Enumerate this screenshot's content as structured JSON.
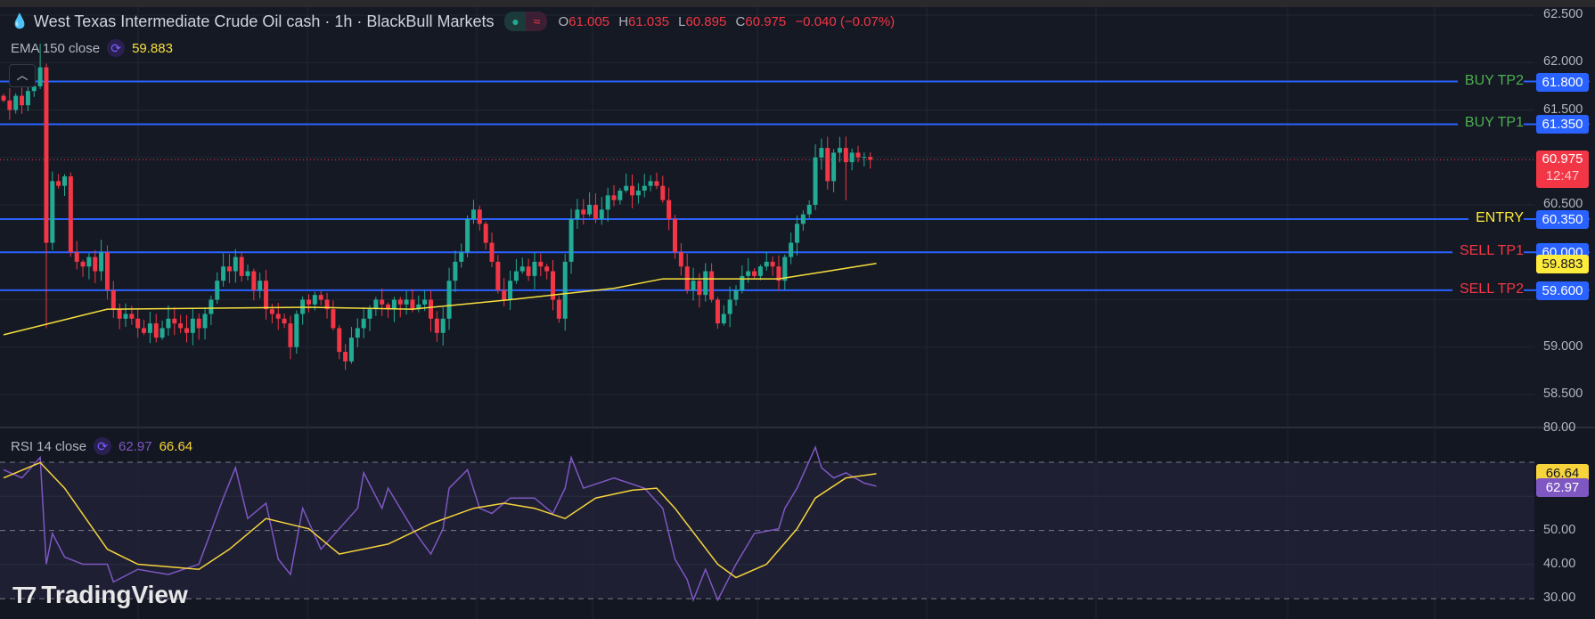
{
  "header": {
    "icon": "droplet-icon",
    "title": "West Texas Intermediate Crude Oil cash · 1h · BlackBull Markets",
    "market_status_icon": "market-open-dot-icon",
    "delay_icon": "approx-icon",
    "ohlc": {
      "o_label": "O",
      "o": "61.005",
      "h_label": "H",
      "h": "61.035",
      "l_label": "L",
      "l": "60.895",
      "c_label": "C",
      "c": "60.975",
      "change": "−0.040 (−0.07%)"
    }
  },
  "ema": {
    "label": "EMA 150 close",
    "value": "59.883",
    "color": "#f7e03c"
  },
  "rsi": {
    "label": "RSI 14 close",
    "value": "62.97",
    "ma_value": "66.64",
    "color": "#7e57c2",
    "ma_color": "#f7d43c"
  },
  "price_axis": {
    "ticks": [
      "62.500",
      "62.000",
      "61.500",
      "60.500",
      "59.000",
      "58.500"
    ],
    "current_price": "60.975",
    "countdown": "12:47",
    "ema_tag": "59.883"
  },
  "rsi_axis": {
    "ticks": [
      "80.00",
      "50.00",
      "40.00",
      "30.00"
    ]
  },
  "levels": [
    {
      "name": "BUY TP2",
      "price": 61.8,
      "tag": "61.800",
      "color": "#4caf50"
    },
    {
      "name": "BUY TP1",
      "price": 61.35,
      "tag": "61.350",
      "color": "#4caf50"
    },
    {
      "name": "ENTRY",
      "price": 60.35,
      "tag": "60.350",
      "color": "#ffeb3b"
    },
    {
      "name": "SELL TP1",
      "price": 60.0,
      "tag": "60.000",
      "color": "#f23645"
    },
    {
      "name": "SELL TP2",
      "price": 59.6,
      "tag": "59.600",
      "color": "#f23645"
    }
  ],
  "colors": {
    "up": "#22ab94",
    "down": "#f23645",
    "level_line": "#2962ff",
    "bg": "#131722"
  },
  "logo": "TradingView",
  "chart_data": {
    "type": "candlestick",
    "ylim": [
      58.3,
      62.6
    ],
    "rsi_ylim": [
      28,
      82
    ],
    "closes": [
      61.6,
      61.5,
      61.65,
      61.55,
      61.7,
      61.75,
      61.95,
      60.1,
      60.75,
      60.7,
      60.8,
      60.0,
      59.9,
      59.85,
      59.95,
      59.8,
      60.0,
      59.6,
      59.4,
      59.3,
      59.35,
      59.3,
      59.2,
      59.15,
      59.25,
      59.1,
      59.2,
      59.3,
      59.25,
      59.2,
      59.15,
      59.3,
      59.2,
      59.35,
      59.5,
      59.7,
      59.85,
      59.8,
      59.95,
      59.75,
      59.8,
      59.6,
      59.7,
      59.4,
      59.35,
      59.3,
      59.25,
      59.0,
      59.35,
      59.5,
      59.45,
      59.55,
      59.5,
      59.4,
      59.2,
      58.95,
      58.85,
      59.1,
      59.2,
      59.3,
      59.4,
      59.5,
      59.45,
      59.4,
      59.5,
      59.45,
      59.5,
      59.4,
      59.45,
      59.5,
      59.3,
      59.15,
      59.3,
      59.7,
      59.9,
      60.0,
      60.35,
      60.45,
      60.3,
      60.1,
      59.9,
      59.6,
      59.5,
      59.7,
      59.8,
      59.85,
      59.75,
      59.9,
      59.85,
      59.8,
      59.5,
      59.3,
      59.9,
      60.35,
      60.45,
      60.4,
      60.5,
      60.35,
      60.45,
      60.6,
      60.55,
      60.65,
      60.7,
      60.6,
      60.65,
      60.7,
      60.75,
      60.7,
      60.55,
      60.35,
      60.0,
      59.85,
      59.6,
      59.7,
      59.55,
      59.8,
      59.5,
      59.25,
      59.35,
      59.5,
      59.6,
      59.75,
      59.8,
      59.75,
      59.85,
      59.9,
      59.85,
      59.7,
      59.95,
      60.1,
      60.3,
      60.4,
      60.5,
      61.0,
      61.1,
      60.75,
      61.05,
      61.1,
      60.95,
      61.05,
      61.0,
      61.005,
      60.975
    ],
    "ema150": [
      [
        0,
        59.13
      ],
      [
        17,
        59.4
      ],
      [
        50,
        59.42
      ],
      [
        67,
        59.4
      ],
      [
        83,
        59.5
      ],
      [
        100,
        59.62
      ],
      [
        108,
        59.72
      ],
      [
        127,
        59.72
      ],
      [
        135,
        59.8
      ],
      [
        143,
        59.883
      ]
    ],
    "rsi14": [
      [
        0,
        67.8
      ],
      [
        3,
        65.4
      ],
      [
        6,
        71.4
      ],
      [
        7,
        40.1
      ],
      [
        8,
        49.1
      ],
      [
        10,
        42.2
      ],
      [
        13,
        40.1
      ],
      [
        17,
        40.1
      ],
      [
        18,
        34.9
      ],
      [
        22,
        38.6
      ],
      [
        27,
        37.1
      ],
      [
        32,
        40.1
      ],
      [
        36,
        59.5
      ],
      [
        38,
        68.4
      ],
      [
        40,
        53.5
      ],
      [
        43,
        58.0
      ],
      [
        45,
        41.6
      ],
      [
        47,
        37.1
      ],
      [
        49,
        56.5
      ],
      [
        52,
        44.5
      ],
      [
        55,
        50.5
      ],
      [
        58,
        56.5
      ],
      [
        59,
        66.9
      ],
      [
        62,
        56.5
      ],
      [
        63,
        62.4
      ],
      [
        67,
        50.5
      ],
      [
        70,
        43.1
      ],
      [
        72,
        50.5
      ],
      [
        73,
        62.4
      ],
      [
        76,
        67.8
      ],
      [
        78,
        56.5
      ],
      [
        80,
        55.0
      ],
      [
        83,
        59.5
      ],
      [
        87,
        59.5
      ],
      [
        90,
        55.0
      ],
      [
        92,
        62.4
      ],
      [
        93,
        71.4
      ],
      [
        95,
        62.4
      ],
      [
        100,
        65.4
      ],
      [
        105,
        62.4
      ],
      [
        108,
        56.5
      ],
      [
        110,
        41.6
      ],
      [
        112,
        35.6
      ],
      [
        113,
        29.6
      ],
      [
        115,
        38.6
      ],
      [
        117,
        29.6
      ],
      [
        120,
        40.1
      ],
      [
        123,
        49.1
      ],
      [
        127,
        50.5
      ],
      [
        128,
        56.5
      ],
      [
        130,
        62.4
      ],
      [
        133,
        74.4
      ],
      [
        134,
        68.4
      ],
      [
        136,
        65.4
      ],
      [
        138,
        66.9
      ],
      [
        141,
        63.9
      ],
      [
        143,
        62.97
      ]
    ],
    "rsi_ma": [
      [
        0,
        65.4
      ],
      [
        6,
        69.9
      ],
      [
        10,
        62.4
      ],
      [
        17,
        44.5
      ],
      [
        22,
        40.1
      ],
      [
        32,
        38.6
      ],
      [
        37,
        44.5
      ],
      [
        43,
        53.5
      ],
      [
        50,
        50.5
      ],
      [
        55,
        43.1
      ],
      [
        63,
        46.0
      ],
      [
        70,
        52.0
      ],
      [
        77,
        56.5
      ],
      [
        82,
        58.0
      ],
      [
        87,
        56.5
      ],
      [
        92,
        53.5
      ],
      [
        97,
        59.5
      ],
      [
        103,
        61.8
      ],
      [
        107,
        62.4
      ],
      [
        110,
        56.5
      ],
      [
        117,
        40.1
      ],
      [
        120,
        36.2
      ],
      [
        125,
        40.1
      ],
      [
        130,
        50.5
      ],
      [
        133,
        59.5
      ],
      [
        138,
        65.4
      ],
      [
        143,
        66.64
      ]
    ]
  }
}
